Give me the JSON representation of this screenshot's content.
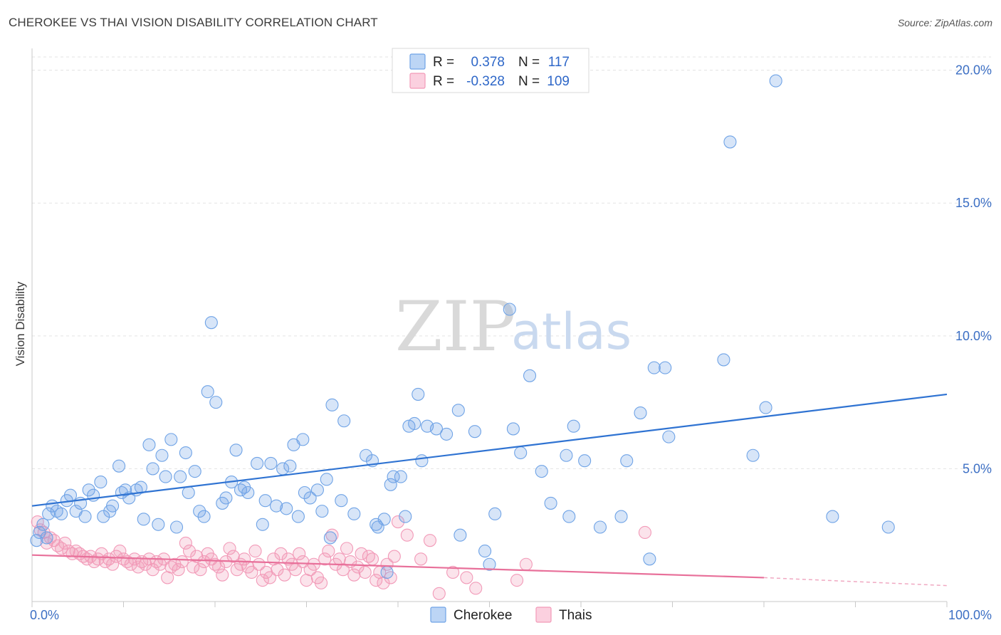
{
  "header": {
    "title": "CHEROKEE VS THAI VISION DISABILITY CORRELATION CHART",
    "source": "Source: ZipAtlas.com"
  },
  "watermark": {
    "part1": "ZIP",
    "part2": "atlas"
  },
  "legend_top": {
    "rows": [
      {
        "r_label": "R =",
        "r_value": "0.378",
        "n_label": "N =",
        "n_value": "117",
        "color": "#6fa3e6"
      },
      {
        "r_label": "R =",
        "r_value": "-0.328",
        "n_label": "N =",
        "n_value": "109",
        "color": "#f29ab8"
      }
    ]
  },
  "legend_bottom": {
    "items": [
      "Cherokee",
      "Thais"
    ]
  },
  "chart_data": {
    "type": "scatter",
    "title": "CHEROKEE VS THAI VISION DISABILITY CORRELATION CHART",
    "ylabel": "Vision Disability",
    "xlabel": "",
    "xlim": [
      0,
      100
    ],
    "ylim": [
      0,
      20.5
    ],
    "x_tick_labels": [
      "0.0%",
      "100.0%"
    ],
    "y_ticks": [
      5,
      10,
      15,
      20
    ],
    "y_tick_labels": [
      "5.0%",
      "10.0%",
      "15.0%",
      "20.0%"
    ],
    "grid": true,
    "legend": "top-center",
    "series": [
      {
        "name": "Cherokee",
        "color": "#6fa3e6",
        "trend": {
          "x": [
            0,
            100
          ],
          "y": [
            3.6,
            7.8
          ]
        },
        "points": [
          [
            0.5,
            2.3
          ],
          [
            0.8,
            2.6
          ],
          [
            1.2,
            2.9
          ],
          [
            1.6,
            2.4
          ],
          [
            1.8,
            3.3
          ],
          [
            2.2,
            3.6
          ],
          [
            2.7,
            3.4
          ],
          [
            3.2,
            3.3
          ],
          [
            3.8,
            3.8
          ],
          [
            4.2,
            4.0
          ],
          [
            4.8,
            3.4
          ],
          [
            5.3,
            3.7
          ],
          [
            5.8,
            3.2
          ],
          [
            6.2,
            4.2
          ],
          [
            6.7,
            4.0
          ],
          [
            7.5,
            4.5
          ],
          [
            7.8,
            3.2
          ],
          [
            8.5,
            3.4
          ],
          [
            8.8,
            3.6
          ],
          [
            9.5,
            5.1
          ],
          [
            9.8,
            4.1
          ],
          [
            10.2,
            4.2
          ],
          [
            10.6,
            3.9
          ],
          [
            11.4,
            4.2
          ],
          [
            11.9,
            4.3
          ],
          [
            12.2,
            3.1
          ],
          [
            12.8,
            5.9
          ],
          [
            13.2,
            5.0
          ],
          [
            13.8,
            2.9
          ],
          [
            14.2,
            5.5
          ],
          [
            14.6,
            4.7
          ],
          [
            15.2,
            6.1
          ],
          [
            15.8,
            2.8
          ],
          [
            16.2,
            4.7
          ],
          [
            16.8,
            5.6
          ],
          [
            17.1,
            4.1
          ],
          [
            17.8,
            4.9
          ],
          [
            18.3,
            3.4
          ],
          [
            18.8,
            3.2
          ],
          [
            19.2,
            7.9
          ],
          [
            19.6,
            10.5
          ],
          [
            20.1,
            7.5
          ],
          [
            20.8,
            3.7
          ],
          [
            21.2,
            3.9
          ],
          [
            21.8,
            4.5
          ],
          [
            22.3,
            5.7
          ],
          [
            22.8,
            4.2
          ],
          [
            23.2,
            4.3
          ],
          [
            23.6,
            4.1
          ],
          [
            24.6,
            5.2
          ],
          [
            25.2,
            2.9
          ],
          [
            25.5,
            3.8
          ],
          [
            26.1,
            5.2
          ],
          [
            26.7,
            3.6
          ],
          [
            27.4,
            5.0
          ],
          [
            27.8,
            3.5
          ],
          [
            28.2,
            5.1
          ],
          [
            28.6,
            5.9
          ],
          [
            29.1,
            3.2
          ],
          [
            29.6,
            6.1
          ],
          [
            29.8,
            4.1
          ],
          [
            30.4,
            3.9
          ],
          [
            31.2,
            4.2
          ],
          [
            31.7,
            3.4
          ],
          [
            32.2,
            4.6
          ],
          [
            32.6,
            2.4
          ],
          [
            32.8,
            7.4
          ],
          [
            33.8,
            3.8
          ],
          [
            34.1,
            6.8
          ],
          [
            35.2,
            3.3
          ],
          [
            36.5,
            5.5
          ],
          [
            37.2,
            5.3
          ],
          [
            37.6,
            2.9
          ],
          [
            37.8,
            2.8
          ],
          [
            38.5,
            3.1
          ],
          [
            38.8,
            1.1
          ],
          [
            39.2,
            4.4
          ],
          [
            39.5,
            4.7
          ],
          [
            40.3,
            4.7
          ],
          [
            40.8,
            3.2
          ],
          [
            41.2,
            6.6
          ],
          [
            41.8,
            6.7
          ],
          [
            42.2,
            7.8
          ],
          [
            42.6,
            5.3
          ],
          [
            43.2,
            6.6
          ],
          [
            44.2,
            6.5
          ],
          [
            45.3,
            6.3
          ],
          [
            46.6,
            7.2
          ],
          [
            46.8,
            2.5
          ],
          [
            48.4,
            6.4
          ],
          [
            49.5,
            1.9
          ],
          [
            50.0,
            1.4
          ],
          [
            50.6,
            3.3
          ],
          [
            52.2,
            11.0
          ],
          [
            52.6,
            6.5
          ],
          [
            53.4,
            5.6
          ],
          [
            54.4,
            8.5
          ],
          [
            55.7,
            4.9
          ],
          [
            56.7,
            3.7
          ],
          [
            58.4,
            5.5
          ],
          [
            58.7,
            3.2
          ],
          [
            59.2,
            6.6
          ],
          [
            60.4,
            5.3
          ],
          [
            62.1,
            2.8
          ],
          [
            64.4,
            3.2
          ],
          [
            65.0,
            5.3
          ],
          [
            66.5,
            7.1
          ],
          [
            67.5,
            1.6
          ],
          [
            68.0,
            8.8
          ],
          [
            69.2,
            8.8
          ],
          [
            69.6,
            6.2
          ],
          [
            75.6,
            9.1
          ],
          [
            76.3,
            17.3
          ],
          [
            78.8,
            5.5
          ],
          [
            80.2,
            7.3
          ],
          [
            81.3,
            19.6
          ],
          [
            87.5,
            3.2
          ],
          [
            93.6,
            2.8
          ]
        ]
      },
      {
        "name": "Thais",
        "color": "#f29ab8",
        "trend": {
          "x": [
            0,
            80
          ],
          "y": [
            1.75,
            0.9
          ]
        },
        "trend_dashed": {
          "x": [
            80,
            100
          ],
          "y": [
            0.9,
            0.6
          ]
        },
        "points": [
          [
            0.6,
            3.0
          ],
          [
            0.9,
            2.7
          ],
          [
            1.3,
            2.6
          ],
          [
            1.6,
            2.2
          ],
          [
            2.0,
            2.4
          ],
          [
            2.4,
            2.3
          ],
          [
            2.8,
            2.1
          ],
          [
            3.2,
            2.0
          ],
          [
            3.6,
            2.2
          ],
          [
            4.0,
            1.9
          ],
          [
            4.4,
            1.8
          ],
          [
            4.8,
            1.9
          ],
          [
            5.2,
            1.8
          ],
          [
            5.6,
            1.7
          ],
          [
            6.0,
            1.6
          ],
          [
            6.4,
            1.7
          ],
          [
            6.8,
            1.5
          ],
          [
            7.2,
            1.6
          ],
          [
            7.6,
            1.8
          ],
          [
            8.0,
            1.5
          ],
          [
            8.4,
            1.6
          ],
          [
            8.8,
            1.4
          ],
          [
            9.2,
            1.7
          ],
          [
            9.6,
            1.9
          ],
          [
            10.0,
            1.6
          ],
          [
            10.4,
            1.5
          ],
          [
            10.8,
            1.4
          ],
          [
            11.2,
            1.6
          ],
          [
            11.6,
            1.3
          ],
          [
            12.0,
            1.5
          ],
          [
            12.4,
            1.4
          ],
          [
            12.8,
            1.6
          ],
          [
            13.2,
            1.2
          ],
          [
            13.6,
            1.5
          ],
          [
            14.0,
            1.4
          ],
          [
            14.4,
            1.6
          ],
          [
            14.8,
            0.9
          ],
          [
            15.2,
            1.3
          ],
          [
            15.6,
            1.4
          ],
          [
            16.0,
            1.2
          ],
          [
            16.4,
            1.5
          ],
          [
            16.8,
            2.2
          ],
          [
            17.2,
            1.9
          ],
          [
            17.6,
            1.3
          ],
          [
            18.0,
            1.7
          ],
          [
            18.4,
            1.2
          ],
          [
            18.8,
            1.5
          ],
          [
            19.2,
            1.8
          ],
          [
            19.6,
            1.6
          ],
          [
            20.0,
            1.4
          ],
          [
            20.4,
            1.3
          ],
          [
            20.8,
            1.0
          ],
          [
            21.2,
            1.5
          ],
          [
            21.6,
            2.0
          ],
          [
            22.0,
            1.7
          ],
          [
            22.4,
            1.2
          ],
          [
            22.8,
            1.4
          ],
          [
            23.2,
            1.6
          ],
          [
            23.6,
            1.3
          ],
          [
            24.0,
            1.1
          ],
          [
            24.4,
            1.9
          ],
          [
            24.8,
            1.4
          ],
          [
            25.2,
            0.8
          ],
          [
            25.6,
            1.1
          ],
          [
            26.0,
            0.9
          ],
          [
            26.4,
            1.6
          ],
          [
            26.8,
            1.2
          ],
          [
            27.2,
            1.8
          ],
          [
            27.6,
            1.0
          ],
          [
            28.0,
            1.6
          ],
          [
            28.4,
            1.4
          ],
          [
            28.8,
            1.2
          ],
          [
            29.2,
            1.8
          ],
          [
            29.6,
            1.5
          ],
          [
            30.0,
            0.8
          ],
          [
            30.4,
            1.2
          ],
          [
            30.8,
            1.4
          ],
          [
            31.2,
            0.9
          ],
          [
            31.6,
            0.7
          ],
          [
            32.0,
            1.6
          ],
          [
            32.4,
            1.9
          ],
          [
            32.8,
            2.5
          ],
          [
            33.2,
            1.4
          ],
          [
            33.6,
            1.6
          ],
          [
            34.0,
            1.2
          ],
          [
            34.4,
            2.0
          ],
          [
            34.8,
            1.5
          ],
          [
            35.2,
            1.0
          ],
          [
            35.6,
            1.3
          ],
          [
            36.0,
            1.8
          ],
          [
            36.4,
            1.1
          ],
          [
            36.8,
            1.7
          ],
          [
            37.2,
            1.6
          ],
          [
            37.6,
            0.8
          ],
          [
            38.0,
            1.1
          ],
          [
            38.4,
            0.7
          ],
          [
            38.8,
            1.4
          ],
          [
            39.2,
            0.9
          ],
          [
            39.6,
            1.7
          ],
          [
            40.0,
            3.0
          ],
          [
            41.0,
            2.5
          ],
          [
            42.5,
            1.6
          ],
          [
            43.5,
            2.3
          ],
          [
            44.5,
            0.3
          ],
          [
            46.0,
            1.1
          ],
          [
            47.5,
            0.9
          ],
          [
            48.5,
            0.5
          ],
          [
            53.0,
            0.8
          ],
          [
            54.0,
            1.4
          ],
          [
            67.0,
            2.6
          ]
        ]
      }
    ]
  }
}
